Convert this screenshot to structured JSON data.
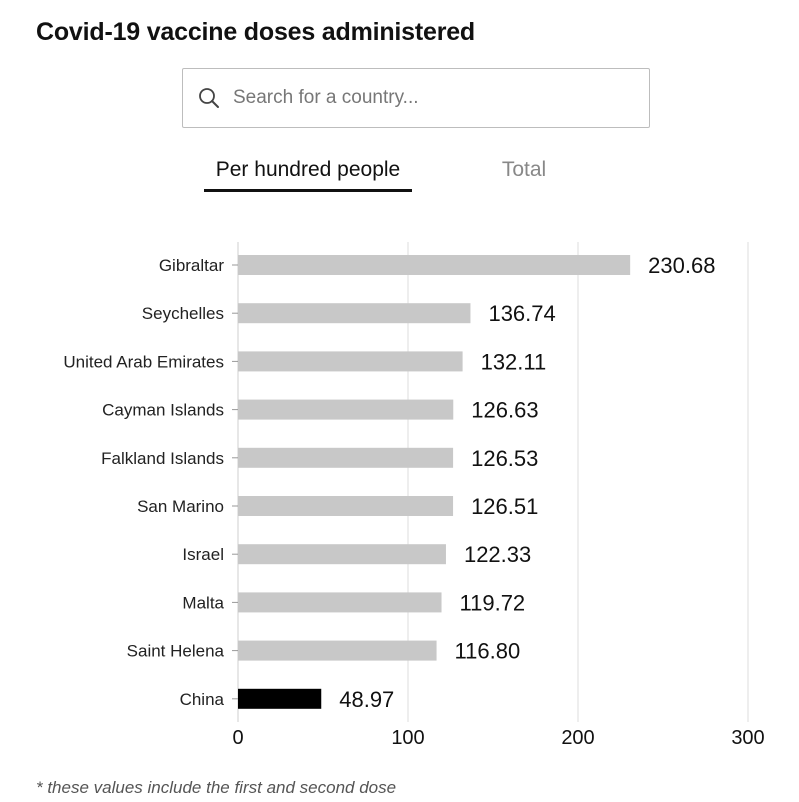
{
  "title": "Covid-19 vaccine doses administered",
  "search": {
    "placeholder": "Search for a country..."
  },
  "tabs": [
    {
      "label": "Per hundred people",
      "active": true
    },
    {
      "label": "Total",
      "active": false
    }
  ],
  "footnote": "* these values include the first and second dose",
  "colors": {
    "bar": "#c8c8c8",
    "highlight": "#000000",
    "grid": "#dddddd"
  },
  "chart_data": {
    "type": "bar",
    "orientation": "horizontal",
    "categories": [
      "Gibraltar",
      "Seychelles",
      "United Arab Emirates",
      "Cayman Islands",
      "Falkland Islands",
      "San Marino",
      "Israel",
      "Malta",
      "Saint Helena",
      "China"
    ],
    "values": [
      230.68,
      136.74,
      132.11,
      126.63,
      126.53,
      126.51,
      122.33,
      119.72,
      116.8,
      48.97
    ],
    "value_labels": [
      "230.68",
      "136.74",
      "132.11",
      "126.63",
      "126.53",
      "126.51",
      "122.33",
      "119.72",
      "116.80",
      "48.97"
    ],
    "highlighted": "China",
    "xlim": [
      0,
      300
    ],
    "xticks": [
      0,
      100,
      200,
      300
    ],
    "grid": true,
    "title": "",
    "xlabel": "",
    "ylabel": ""
  }
}
